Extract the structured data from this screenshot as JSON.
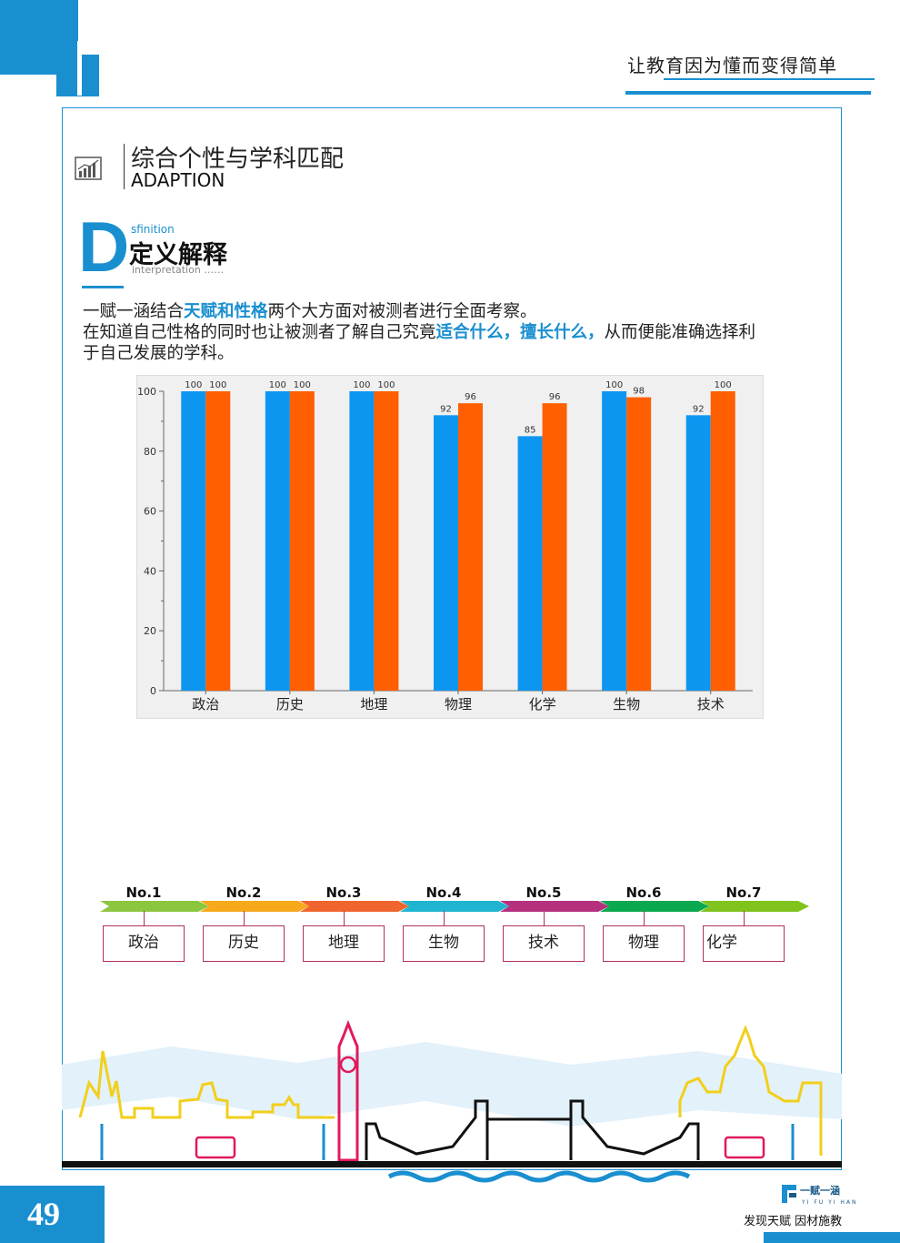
{
  "header": {
    "tagline": "让教育因为懂而变得简单"
  },
  "section": {
    "title": "综合个性与学科匹配",
    "subtitle": "ADAPTION"
  },
  "definition": {
    "letter": "D",
    "small_top": "sfinition",
    "title": "定义解释",
    "small_bottom": "interpretation ……"
  },
  "paragraph": {
    "line1_a": "一赋一涵结合",
    "line1_hl": "天赋和性格",
    "line1_b": "两个大方面对被测者进行全面考察。",
    "line2_a": "在知道自己性格的同时也让被测者了解自己究竟",
    "line2_hl": "适合什么，擅长什么，",
    "line2_b": "从而便能准确选择利",
    "line3": "于自己发展的学科。"
  },
  "chart_data": {
    "type": "bar",
    "categories": [
      "政治",
      "历史",
      "地理",
      "物理",
      "化学",
      "生物",
      "技术"
    ],
    "series": [
      {
        "color": "#0d96f0",
        "values": [
          100,
          100,
          100,
          92,
          85,
          100,
          92
        ]
      },
      {
        "color": "#ff5f00",
        "values": [
          100,
          100,
          100,
          96,
          96,
          98,
          100
        ]
      }
    ],
    "ylim": [
      0,
      100
    ],
    "yticks": [
      "0",
      "20",
      "40",
      "60",
      "80",
      "100"
    ],
    "xlabel": "",
    "ylabel": "",
    "grid": false
  },
  "ranking": [
    {
      "no": "No.1",
      "subject": "政治",
      "color": "#8cc63f"
    },
    {
      "no": "No.2",
      "subject": "历史",
      "color": "#f7a81b"
    },
    {
      "no": "No.3",
      "subject": "地理",
      "color": "#f0652e"
    },
    {
      "no": "No.4",
      "subject": "生物",
      "color": "#1fb5d0"
    },
    {
      "no": "No.5",
      "subject": "技术",
      "color": "#b5307d"
    },
    {
      "no": "No.6",
      "subject": "物理",
      "color": "#0aa84f"
    },
    {
      "no": "No.7",
      "subject": "化学",
      "color": "#7fc31c"
    }
  ],
  "footer": {
    "page_number": "49",
    "slogan": "发现天赋 因材施教",
    "brand": "一赋一涵",
    "brand_sub": "YI FU YI HAN"
  },
  "colors": {
    "accent": "#1a8fd0"
  }
}
